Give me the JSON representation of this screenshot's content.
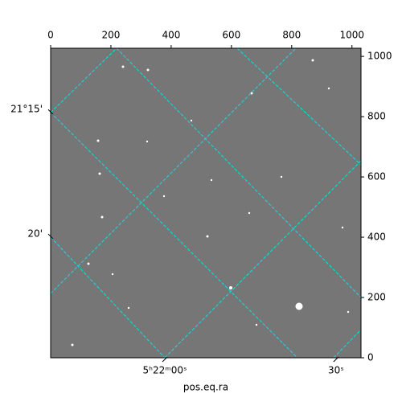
{
  "chart_data": {
    "type": "image",
    "xlabel": "pos.eq.ra",
    "xlim": [
      0,
      1030
    ],
    "ylim": [
      0,
      1027
    ],
    "xticks": [
      0,
      200,
      400,
      600,
      800,
      1000
    ],
    "yticks": [
      0,
      200,
      400,
      600,
      800,
      1000
    ],
    "wcs_xticks": [
      {
        "value": 379,
        "label": "5ʰ22ᵐ00ˢ"
      },
      {
        "value": 947,
        "label": "30ˢ"
      }
    ],
    "wcs_yticks": [
      {
        "value": 813,
        "label": "21°15'"
      },
      {
        "value": 400,
        "label": "20'"
      }
    ],
    "grid_color": "#00e5e5"
  }
}
